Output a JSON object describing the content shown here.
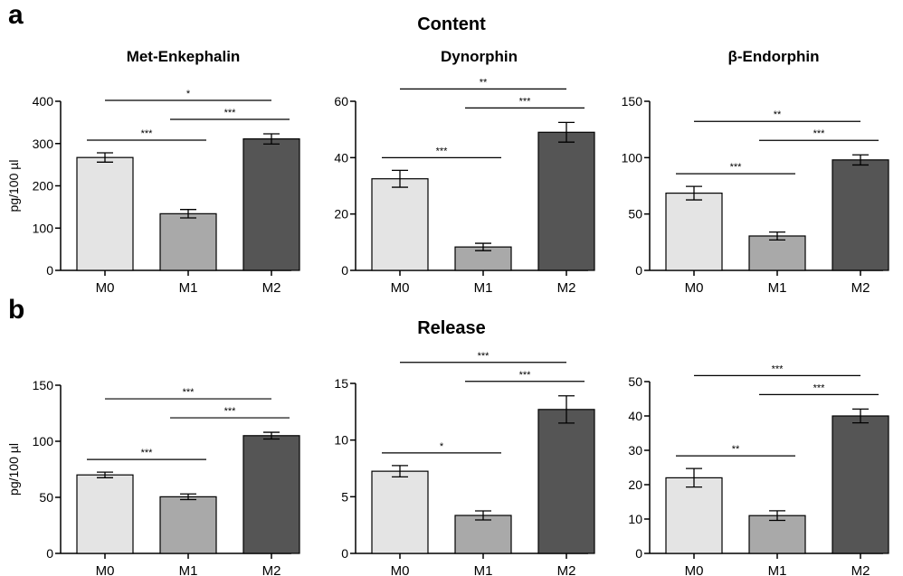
{
  "figure": {
    "panel_a_label": "a",
    "panel_b_label": "b",
    "section_a_title": "Content",
    "section_b_title": "Release",
    "colors": {
      "M0": "#e4e4e4",
      "M1": "#a9a9a9",
      "M2": "#555555",
      "axis": "#000000"
    }
  },
  "chart_data": [
    {
      "type": "bar",
      "title": "Met-Enkephalin",
      "ylabel": "pg/100 µl",
      "categories": [
        "M0",
        "M1",
        "M2"
      ],
      "values": [
        267,
        134,
        311
      ],
      "errors": [
        11,
        10,
        12
      ],
      "ylim": [
        0,
        400
      ],
      "yticks": [
        0,
        100,
        200,
        300,
        400
      ],
      "significance": [
        {
          "from": "M0",
          "to": "M1",
          "label": "***"
        },
        {
          "from": "M1",
          "to": "M2",
          "label": "***"
        },
        {
          "from": "M0",
          "to": "M2",
          "label": "*"
        }
      ]
    },
    {
      "type": "bar",
      "title": "Dynorphin",
      "ylabel": "",
      "categories": [
        "M0",
        "M1",
        "M2"
      ],
      "values": [
        32.5,
        8.3,
        49
      ],
      "errors": [
        3,
        1.3,
        3.5
      ],
      "ylim": [
        0,
        60
      ],
      "yticks": [
        0,
        20,
        40,
        60
      ],
      "significance": [
        {
          "from": "M0",
          "to": "M1",
          "label": "***"
        },
        {
          "from": "M1",
          "to": "M2",
          "label": "***"
        },
        {
          "from": "M0",
          "to": "M2",
          "label": "**"
        }
      ]
    },
    {
      "type": "bar",
      "title": "β-Endorphin",
      "ylabel": "",
      "categories": [
        "M0",
        "M1",
        "M2"
      ],
      "values": [
        68.5,
        30.5,
        98
      ],
      "errors": [
        6,
        3.5,
        4.5
      ],
      "ylim": [
        0,
        150
      ],
      "yticks": [
        0,
        50,
        100,
        150
      ],
      "significance": [
        {
          "from": "M0",
          "to": "M1",
          "label": "***"
        },
        {
          "from": "M1",
          "to": "M2",
          "label": "***"
        },
        {
          "from": "M0",
          "to": "M2",
          "label": "**"
        }
      ]
    },
    {
      "type": "bar",
      "title": "",
      "ylabel": "pg/100 µl",
      "categories": [
        "M0",
        "M1",
        "M2"
      ],
      "values": [
        70,
        50.5,
        105
      ],
      "errors": [
        2.5,
        2.5,
        3
      ],
      "ylim": [
        0,
        150
      ],
      "yticks": [
        0,
        50,
        100,
        150
      ],
      "significance": [
        {
          "from": "M0",
          "to": "M1",
          "label": "***"
        },
        {
          "from": "M1",
          "to": "M2",
          "label": "***"
        },
        {
          "from": "M0",
          "to": "M2",
          "label": "***"
        }
      ]
    },
    {
      "type": "bar",
      "title": "",
      "ylabel": "",
      "categories": [
        "M0",
        "M1",
        "M2"
      ],
      "values": [
        7.25,
        3.35,
        12.7
      ],
      "errors": [
        0.5,
        0.4,
        1.2
      ],
      "ylim": [
        0,
        15
      ],
      "yticks": [
        0,
        5,
        10,
        15
      ],
      "significance": [
        {
          "from": "M0",
          "to": "M1",
          "label": "*"
        },
        {
          "from": "M1",
          "to": "M2",
          "label": "***"
        },
        {
          "from": "M0",
          "to": "M2",
          "label": "***"
        }
      ]
    },
    {
      "type": "bar",
      "title": "",
      "ylabel": "",
      "categories": [
        "M0",
        "M1",
        "M2"
      ],
      "values": [
        22,
        11,
        40
      ],
      "errors": [
        2.7,
        1.4,
        2
      ],
      "ylim": [
        0,
        50
      ],
      "yticks": [
        0,
        10,
        20,
        30,
        40,
        50
      ],
      "significance": [
        {
          "from": "M0",
          "to": "M1",
          "label": "**"
        },
        {
          "from": "M1",
          "to": "M2",
          "label": "***"
        },
        {
          "from": "M0",
          "to": "M2",
          "label": "***"
        }
      ]
    }
  ]
}
